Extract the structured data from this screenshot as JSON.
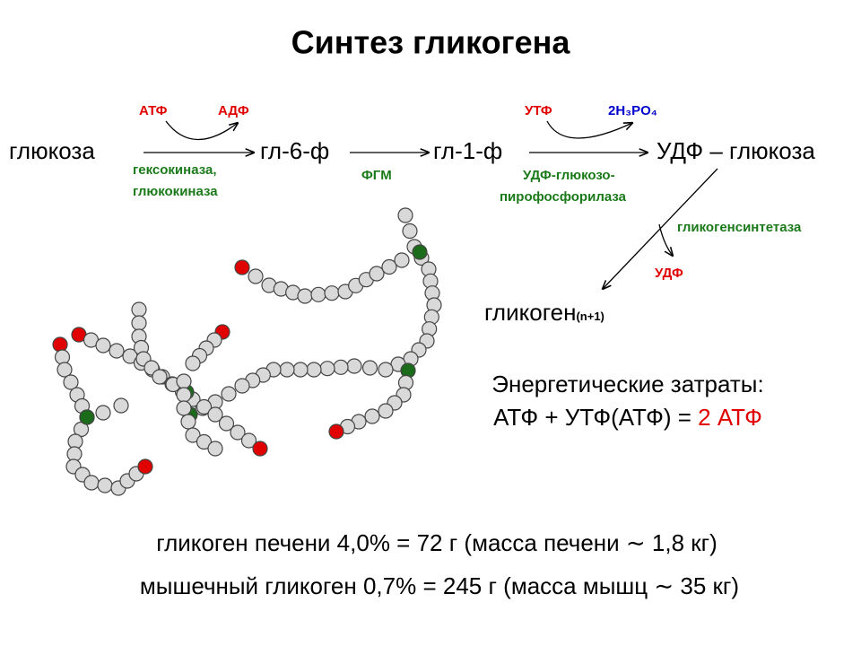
{
  "title": "Синтез гликогена",
  "reaction": {
    "substrates": [
      "глюкоза",
      "гл-6-ф",
      "гл-1-ф",
      "УДФ – глюкоза"
    ],
    "step1": {
      "cofactor_in": "АТФ",
      "cofactor_out": "АДФ",
      "enzyme": [
        "гексокиназа,",
        "глюкокиназа"
      ]
    },
    "step2": {
      "enzyme": "ФГМ"
    },
    "step3": {
      "cofactor_in": "УТФ",
      "cofactor_out": "2H₃PO₄",
      "enzyme": [
        "УДФ-глюкозо-",
        "пирофосфорилаза"
      ]
    },
    "step4": {
      "enzyme": "гликогенсинтетаза",
      "cofactor_out": "УДФ",
      "product": "гликоген",
      "product_subscript": "(n+1)"
    }
  },
  "energy": {
    "heading": "Энергетические затраты:",
    "equation": "АТФ + УТФ(АТФ) = ",
    "result": "2 АТФ"
  },
  "notes": [
    "гликоген печени 4,0% = 72 г (масса печени ∼ 1,8 кг)",
    "мышечный гликоген 0,7% = 245 г (масса мышц ∼ 35 кг)"
  ]
}
